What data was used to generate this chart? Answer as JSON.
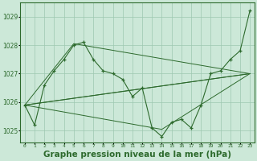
{
  "x": [
    0,
    1,
    2,
    3,
    4,
    5,
    6,
    7,
    8,
    9,
    10,
    11,
    12,
    13,
    14,
    15,
    16,
    17,
    18,
    19,
    20,
    21,
    22,
    23
  ],
  "y": [
    1025.9,
    1025.2,
    1026.6,
    1027.1,
    1027.5,
    1028.0,
    1028.1,
    1027.5,
    1027.1,
    1027.0,
    1026.8,
    1026.2,
    1026.5,
    1025.1,
    1024.8,
    1025.3,
    1025.4,
    1025.1,
    1025.9,
    1027.0,
    1027.1,
    1027.5,
    1027.8,
    1029.2
  ],
  "envelope_lines": [
    {
      "x": [
        0,
        23
      ],
      "y": [
        1025.9,
        1027.0
      ]
    },
    {
      "x": [
        0,
        23
      ],
      "y": [
        1025.9,
        1027.0
      ]
    },
    {
      "x": [
        0,
        14,
        23
      ],
      "y": [
        1025.9,
        1025.05,
        1027.0
      ]
    },
    {
      "x": [
        0,
        5,
        23
      ],
      "y": [
        1025.9,
        1028.05,
        1027.0
      ]
    }
  ],
  "main_color": "#2d6a2d",
  "bg_color": "#cce8d8",
  "grid_color": "#9dc8b0",
  "ylim": [
    1024.6,
    1029.5
  ],
  "xlim": [
    -0.5,
    23.5
  ],
  "yticks": [
    1025,
    1026,
    1027,
    1028,
    1029
  ],
  "xtick_labels": [
    "0",
    "1",
    "2",
    "3",
    "4",
    "5",
    "6",
    "7",
    "8",
    "9",
    "10",
    "11",
    "12",
    "13",
    "14",
    "15",
    "16",
    "17",
    "18",
    "19",
    "20",
    "21",
    "22",
    "23"
  ],
  "xlabel": "Graphe pression niveau de la mer (hPa)",
  "xlabel_fontsize": 7.5
}
